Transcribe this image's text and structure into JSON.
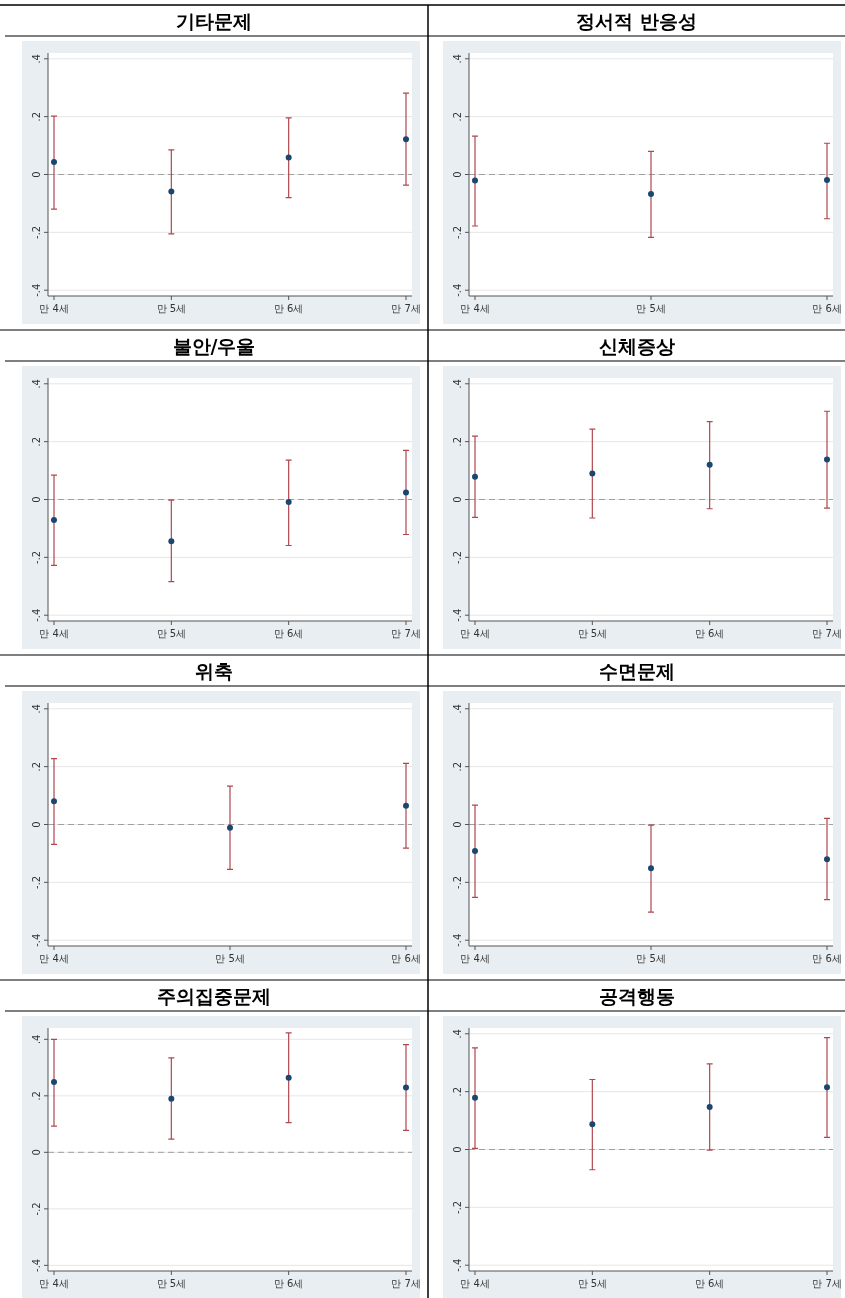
{
  "chart_data": [
    {
      "type": "scatter",
      "title": "기타문제",
      "categories": [
        "만 4세",
        "만 5세",
        "만 6세",
        "만 7세"
      ],
      "values": [
        0.043,
        -0.059,
        0.059,
        0.122
      ],
      "errors": [
        [
          -0.12,
          0.202
        ],
        [
          -0.205,
          0.085
        ],
        [
          -0.08,
          0.196
        ],
        [
          -0.037,
          0.281
        ]
      ],
      "color": "#1a476f",
      "marker": "circle",
      "ylim": [
        -0.42,
        0.42
      ],
      "yticks": [
        {
          "value": -0.4,
          "label": "-.4"
        },
        {
          "value": -0.2,
          "label": "-.2"
        },
        {
          "value": 0,
          "label": "0"
        },
        {
          "value": 0.2,
          "label": ".2"
        },
        {
          "value": 0.4,
          "label": ".4"
        }
      ],
      "grid": "y",
      "ref_lines": [
        {
          "axis": "y",
          "value": 0,
          "color": "#a0a0a0",
          "line_style": "dashed"
        }
      ]
    },
    {
      "type": "scatter",
      "title": "정서적 반응성",
      "categories": [
        "만 4세",
        "만 5세",
        "만 6세"
      ],
      "values": [
        -0.021,
        -0.067,
        -0.019
      ],
      "errors": [
        [
          -0.178,
          0.133
        ],
        [
          -0.217,
          0.08
        ],
        [
          -0.153,
          0.108
        ]
      ],
      "color": "#1a476f",
      "marker": "circle",
      "ylim": [
        -0.42,
        0.42
      ],
      "yticks": [
        {
          "value": -0.4,
          "label": "-.4"
        },
        {
          "value": -0.2,
          "label": "-.2"
        },
        {
          "value": 0,
          "label": "0"
        },
        {
          "value": 0.2,
          "label": ".2"
        },
        {
          "value": 0.4,
          "label": ".4"
        }
      ],
      "grid": "y",
      "ref_lines": [
        {
          "axis": "y",
          "value": 0,
          "color": "#a0a0a0",
          "line_style": "dashed"
        }
      ]
    },
    {
      "type": "scatter",
      "title": "불안/우울",
      "categories": [
        "만 4세",
        "만 5세",
        "만 6세",
        "만 7세"
      ],
      "values": [
        -0.071,
        -0.144,
        -0.009,
        0.024
      ],
      "errors": [
        [
          -0.228,
          0.084
        ],
        [
          -0.284,
          -0.002
        ],
        [
          -0.159,
          0.136
        ],
        [
          -0.121,
          0.17
        ]
      ],
      "color": "#1a476f",
      "marker": "circle",
      "ylim": [
        -0.42,
        0.42
      ],
      "yticks": [
        {
          "value": -0.4,
          "label": "-.4"
        },
        {
          "value": -0.2,
          "label": "-.2"
        },
        {
          "value": 0,
          "label": "0"
        },
        {
          "value": 0.2,
          "label": ".2"
        },
        {
          "value": 0.4,
          "label": ".4"
        }
      ],
      "grid": "y",
      "ref_lines": [
        {
          "axis": "y",
          "value": 0,
          "color": "#a0a0a0",
          "line_style": "dashed"
        }
      ]
    },
    {
      "type": "scatter",
      "title": "신체증상",
      "categories": [
        "만 4세",
        "만 5세",
        "만 6세",
        "만 7세"
      ],
      "values": [
        0.079,
        0.09,
        0.12,
        0.138
      ],
      "errors": [
        [
          -0.062,
          0.219
        ],
        [
          -0.064,
          0.243
        ],
        [
          -0.032,
          0.269
        ],
        [
          -0.03,
          0.305
        ]
      ],
      "color": "#1a476f",
      "marker": "circle",
      "ylim": [
        -0.42,
        0.42
      ],
      "yticks": [
        {
          "value": -0.4,
          "label": "-.4"
        },
        {
          "value": -0.2,
          "label": "-.2"
        },
        {
          "value": 0,
          "label": "0"
        },
        {
          "value": 0.2,
          "label": ".2"
        },
        {
          "value": 0.4,
          "label": ".4"
        }
      ],
      "grid": "y",
      "ref_lines": [
        {
          "axis": "y",
          "value": 0,
          "color": "#a0a0a0",
          "line_style": "dashed"
        }
      ]
    },
    {
      "type": "scatter",
      "title": "위축",
      "categories": [
        "만 4세",
        "만 5세",
        "만 6세"
      ],
      "values": [
        0.08,
        -0.011,
        0.065
      ],
      "errors": [
        [
          -0.069,
          0.228
        ],
        [
          -0.155,
          0.133
        ],
        [
          -0.082,
          0.211
        ]
      ],
      "color": "#1a476f",
      "marker": "circle",
      "ylim": [
        -0.42,
        0.42
      ],
      "yticks": [
        {
          "value": -0.4,
          "label": "-.4"
        },
        {
          "value": -0.2,
          "label": "-.2"
        },
        {
          "value": 0,
          "label": "0"
        },
        {
          "value": 0.2,
          "label": ".2"
        },
        {
          "value": 0.4,
          "label": ".4"
        }
      ],
      "grid": "y",
      "ref_lines": [
        {
          "axis": "y",
          "value": 0,
          "color": "#a0a0a0",
          "line_style": "dashed"
        }
      ]
    },
    {
      "type": "scatter",
      "title": "수면문제",
      "categories": [
        "만 4세",
        "만 5세",
        "만 6세"
      ],
      "values": [
        -0.092,
        -0.151,
        -0.12
      ],
      "errors": [
        [
          -0.252,
          0.067
        ],
        [
          -0.303,
          -0.002
        ],
        [
          -0.26,
          0.021
        ]
      ],
      "color": "#1a476f",
      "marker": "circle",
      "ylim": [
        -0.42,
        0.42
      ],
      "yticks": [
        {
          "value": -0.4,
          "label": "-.4"
        },
        {
          "value": -0.2,
          "label": "-.2"
        },
        {
          "value": 0,
          "label": "0"
        },
        {
          "value": 0.2,
          "label": ".2"
        },
        {
          "value": 0.4,
          "label": ".4"
        }
      ],
      "grid": "y",
      "ref_lines": [
        {
          "axis": "y",
          "value": 0,
          "color": "#a0a0a0",
          "line_style": "dashed"
        }
      ]
    },
    {
      "type": "scatter",
      "title": "주의집중문제",
      "categories": [
        "만 4세",
        "만 5세",
        "만 6세",
        "만 7세"
      ],
      "values": [
        0.249,
        0.19,
        0.264,
        0.229
      ],
      "errors": [
        [
          0.093,
          0.4
        ],
        [
          0.047,
          0.334
        ],
        [
          0.105,
          0.423
        ],
        [
          0.078,
          0.381
        ]
      ],
      "color": "#1a476f",
      "marker": "circle",
      "ylim": [
        -0.42,
        0.44
      ],
      "yticks": [
        {
          "value": -0.4,
          "label": "-.4"
        },
        {
          "value": -0.2,
          "label": "-.2"
        },
        {
          "value": 0,
          "label": "0"
        },
        {
          "value": 0.2,
          "label": ".2"
        },
        {
          "value": 0.4,
          "label": ".4"
        }
      ],
      "grid": "y",
      "ref_lines": [
        {
          "axis": "y",
          "value": 0,
          "color": "#a0a0a0",
          "line_style": "dashed"
        }
      ]
    },
    {
      "type": "scatter",
      "title": "공격행동",
      "categories": [
        "만 4세",
        "만 5세",
        "만 6세",
        "만 7세"
      ],
      "values": [
        0.179,
        0.087,
        0.147,
        0.215
      ],
      "errors": [
        [
          0.004,
          0.351
        ],
        [
          -0.07,
          0.242
        ],
        [
          -0.002,
          0.296
        ],
        [
          0.042,
          0.387
        ]
      ],
      "color": "#1a476f",
      "marker": "circle",
      "ylim": [
        -0.42,
        0.42
      ],
      "yticks": [
        {
          "value": -0.4,
          "label": "-.4"
        },
        {
          "value": -0.2,
          "label": "-.2"
        },
        {
          "value": 0,
          "label": "0"
        },
        {
          "value": 0.2,
          "label": ".2"
        },
        {
          "value": 0.4,
          "label": ".4"
        }
      ],
      "grid": "y",
      "ref_lines": [
        {
          "axis": "y",
          "value": 0,
          "color": "#a0a0a0",
          "line_style": "dashed"
        }
      ]
    }
  ]
}
